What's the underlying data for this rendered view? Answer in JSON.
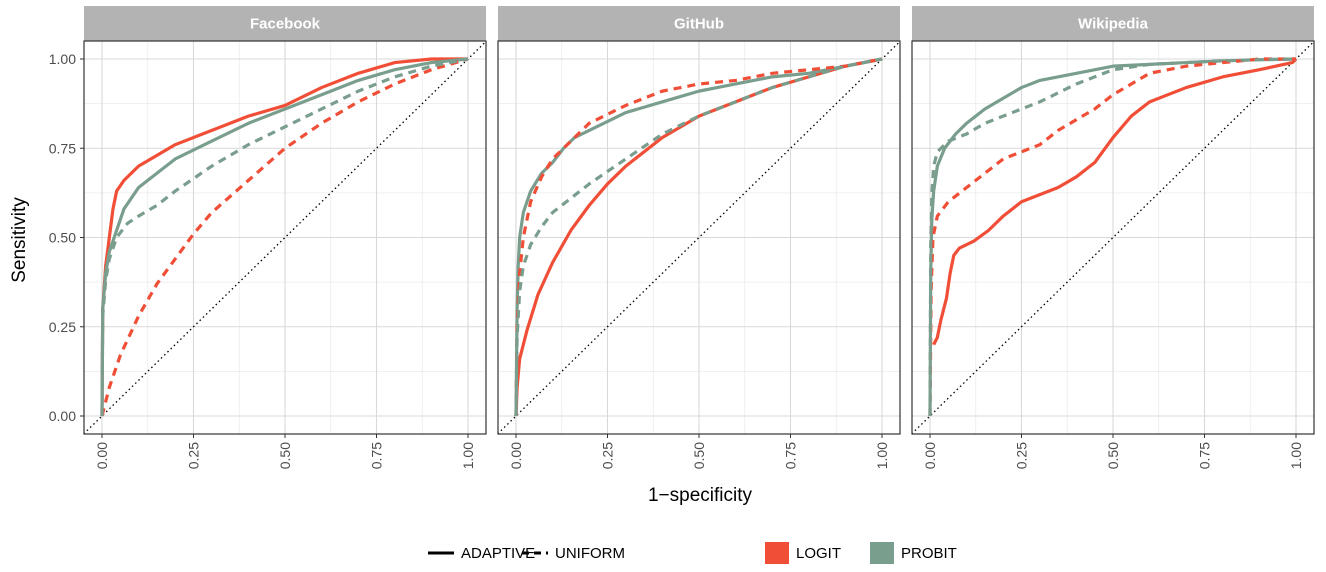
{
  "chart_data": {
    "type": "line",
    "facets": [
      "Facebook",
      "GitHub",
      "Wikipedia"
    ],
    "xlabel": "1−specificity",
    "ylabel": "Sensitivity",
    "xlim": [
      0,
      1
    ],
    "ylim": [
      0,
      1
    ],
    "x_ticks": [
      "0.00",
      "0.25",
      "0.50",
      "0.75",
      "1.00"
    ],
    "y_ticks": [
      "0.00",
      "0.25",
      "0.50",
      "0.75",
      "1.00"
    ],
    "grid": true,
    "legend_position": "bottom",
    "legend": {
      "linetype": [
        {
          "label": "ADAPTIVE",
          "dash": "solid"
        },
        {
          "label": "UNIFORM",
          "dash": "dashed"
        }
      ],
      "color": [
        {
          "label": "LOGIT",
          "color": "#F04E36"
        },
        {
          "label": "PROBIT",
          "color": "#7A9E8E"
        }
      ]
    },
    "diagonal_reference": true,
    "panels": [
      {
        "facet": "Facebook",
        "series": [
          {
            "method": "LOGIT",
            "linetype": "ADAPTIVE",
            "points": [
              [
                0,
                0
              ],
              [
                0.002,
                0.3
              ],
              [
                0.01,
                0.42
              ],
              [
                0.02,
                0.5
              ],
              [
                0.03,
                0.58
              ],
              [
                0.04,
                0.63
              ],
              [
                0.06,
                0.66
              ],
              [
                0.1,
                0.7
              ],
              [
                0.15,
                0.73
              ],
              [
                0.2,
                0.76
              ],
              [
                0.3,
                0.8
              ],
              [
                0.4,
                0.84
              ],
              [
                0.5,
                0.87
              ],
              [
                0.6,
                0.92
              ],
              [
                0.7,
                0.96
              ],
              [
                0.8,
                0.99
              ],
              [
                0.9,
                1.0
              ],
              [
                1,
                1
              ]
            ]
          },
          {
            "method": "PROBIT",
            "linetype": "ADAPTIVE",
            "points": [
              [
                0,
                0
              ],
              [
                0.002,
                0.3
              ],
              [
                0.01,
                0.4
              ],
              [
                0.02,
                0.46
              ],
              [
                0.04,
                0.52
              ],
              [
                0.06,
                0.58
              ],
              [
                0.1,
                0.64
              ],
              [
                0.15,
                0.68
              ],
              [
                0.2,
                0.72
              ],
              [
                0.3,
                0.77
              ],
              [
                0.4,
                0.82
              ],
              [
                0.5,
                0.86
              ],
              [
                0.6,
                0.9
              ],
              [
                0.7,
                0.94
              ],
              [
                0.8,
                0.97
              ],
              [
                0.9,
                0.99
              ],
              [
                1,
                1
              ]
            ]
          },
          {
            "method": "LOGIT",
            "linetype": "UNIFORM",
            "points": [
              [
                0,
                0
              ],
              [
                0.02,
                0.08
              ],
              [
                0.05,
                0.17
              ],
              [
                0.1,
                0.28
              ],
              [
                0.15,
                0.37
              ],
              [
                0.2,
                0.44
              ],
              [
                0.25,
                0.51
              ],
              [
                0.3,
                0.57
              ],
              [
                0.4,
                0.66
              ],
              [
                0.5,
                0.75
              ],
              [
                0.6,
                0.82
              ],
              [
                0.7,
                0.88
              ],
              [
                0.8,
                0.93
              ],
              [
                0.9,
                0.97
              ],
              [
                1,
                1
              ]
            ]
          },
          {
            "method": "PROBIT",
            "linetype": "UNIFORM",
            "points": [
              [
                0,
                0
              ],
              [
                0.002,
                0.28
              ],
              [
                0.01,
                0.38
              ],
              [
                0.02,
                0.44
              ],
              [
                0.04,
                0.5
              ],
              [
                0.07,
                0.54
              ],
              [
                0.1,
                0.56
              ],
              [
                0.15,
                0.59
              ],
              [
                0.2,
                0.63
              ],
              [
                0.3,
                0.7
              ],
              [
                0.4,
                0.76
              ],
              [
                0.5,
                0.81
              ],
              [
                0.6,
                0.86
              ],
              [
                0.7,
                0.91
              ],
              [
                0.8,
                0.95
              ],
              [
                0.9,
                0.98
              ],
              [
                1,
                1
              ]
            ]
          }
        ]
      },
      {
        "facet": "GitHub",
        "series": [
          {
            "method": "LOGIT",
            "linetype": "ADAPTIVE",
            "points": [
              [
                0,
                0
              ],
              [
                0.003,
                0.08
              ],
              [
                0.01,
                0.16
              ],
              [
                0.03,
                0.24
              ],
              [
                0.06,
                0.34
              ],
              [
                0.1,
                0.43
              ],
              [
                0.15,
                0.52
              ],
              [
                0.2,
                0.59
              ],
              [
                0.25,
                0.65
              ],
              [
                0.3,
                0.7
              ],
              [
                0.4,
                0.78
              ],
              [
                0.5,
                0.84
              ],
              [
                0.6,
                0.88
              ],
              [
                0.7,
                0.92
              ],
              [
                0.8,
                0.95
              ],
              [
                0.9,
                0.98
              ],
              [
                1,
                1
              ]
            ]
          },
          {
            "method": "PROBIT",
            "linetype": "ADAPTIVE",
            "points": [
              [
                0,
                0
              ],
              [
                0.003,
                0.3
              ],
              [
                0.006,
                0.42
              ],
              [
                0.01,
                0.5
              ],
              [
                0.02,
                0.57
              ],
              [
                0.04,
                0.63
              ],
              [
                0.07,
                0.68
              ],
              [
                0.1,
                0.71
              ],
              [
                0.13,
                0.75
              ],
              [
                0.16,
                0.78
              ],
              [
                0.2,
                0.8
              ],
              [
                0.3,
                0.85
              ],
              [
                0.4,
                0.88
              ],
              [
                0.5,
                0.91
              ],
              [
                0.6,
                0.93
              ],
              [
                0.7,
                0.95
              ],
              [
                0.8,
                0.96
              ],
              [
                0.9,
                0.98
              ],
              [
                1,
                1
              ]
            ]
          },
          {
            "method": "LOGIT",
            "linetype": "UNIFORM",
            "points": [
              [
                0,
                0
              ],
              [
                0.003,
                0.25
              ],
              [
                0.01,
                0.4
              ],
              [
                0.02,
                0.5
              ],
              [
                0.04,
                0.6
              ],
              [
                0.07,
                0.67
              ],
              [
                0.1,
                0.72
              ],
              [
                0.15,
                0.77
              ],
              [
                0.2,
                0.82
              ],
              [
                0.3,
                0.87
              ],
              [
                0.4,
                0.91
              ],
              [
                0.5,
                0.93
              ],
              [
                0.6,
                0.94
              ],
              [
                0.7,
                0.96
              ],
              [
                0.8,
                0.97
              ],
              [
                0.9,
                0.98
              ],
              [
                1,
                1
              ]
            ]
          },
          {
            "method": "PROBIT",
            "linetype": "UNIFORM",
            "points": [
              [
                0,
                0
              ],
              [
                0.003,
                0.22
              ],
              [
                0.01,
                0.35
              ],
              [
                0.02,
                0.42
              ],
              [
                0.04,
                0.48
              ],
              [
                0.07,
                0.53
              ],
              [
                0.1,
                0.57
              ],
              [
                0.15,
                0.61
              ],
              [
                0.2,
                0.65
              ],
              [
                0.3,
                0.72
              ],
              [
                0.4,
                0.79
              ],
              [
                0.5,
                0.84
              ],
              [
                0.6,
                0.88
              ],
              [
                0.7,
                0.92
              ],
              [
                0.8,
                0.95
              ],
              [
                0.9,
                0.98
              ],
              [
                1,
                1
              ]
            ]
          }
        ]
      },
      {
        "facet": "Wikipedia",
        "series": [
          {
            "method": "LOGIT",
            "linetype": "ADAPTIVE",
            "points": [
              [
                0.01,
                0.2
              ],
              [
                0.02,
                0.22
              ],
              [
                0.03,
                0.27
              ],
              [
                0.045,
                0.33
              ],
              [
                0.055,
                0.4
              ],
              [
                0.065,
                0.45
              ],
              [
                0.08,
                0.47
              ],
              [
                0.12,
                0.49
              ],
              [
                0.16,
                0.52
              ],
              [
                0.2,
                0.56
              ],
              [
                0.25,
                0.6
              ],
              [
                0.3,
                0.62
              ],
              [
                0.35,
                0.64
              ],
              [
                0.4,
                0.67
              ],
              [
                0.45,
                0.71
              ],
              [
                0.5,
                0.78
              ],
              [
                0.55,
                0.84
              ],
              [
                0.6,
                0.88
              ],
              [
                0.7,
                0.92
              ],
              [
                0.8,
                0.95
              ],
              [
                0.9,
                0.97
              ],
              [
                0.99,
                0.99
              ],
              [
                1,
                1
              ]
            ]
          },
          {
            "method": "PROBIT",
            "linetype": "ADAPTIVE",
            "points": [
              [
                0,
                0
              ],
              [
                0.002,
                0.4
              ],
              [
                0.005,
                0.55
              ],
              [
                0.01,
                0.63
              ],
              [
                0.02,
                0.7
              ],
              [
                0.04,
                0.75
              ],
              [
                0.07,
                0.79
              ],
              [
                0.1,
                0.82
              ],
              [
                0.15,
                0.86
              ],
              [
                0.2,
                0.89
              ],
              [
                0.25,
                0.92
              ],
              [
                0.3,
                0.94
              ],
              [
                0.4,
                0.96
              ],
              [
                0.5,
                0.98
              ],
              [
                0.6,
                0.985
              ],
              [
                0.7,
                0.99
              ],
              [
                0.8,
                0.995
              ],
              [
                0.9,
                0.998
              ],
              [
                1,
                1
              ]
            ]
          },
          {
            "method": "LOGIT",
            "linetype": "UNIFORM",
            "points": [
              [
                0,
                0.0
              ],
              [
                0.003,
                0.35
              ],
              [
                0.008,
                0.5
              ],
              [
                0.02,
                0.56
              ],
              [
                0.05,
                0.6
              ],
              [
                0.1,
                0.64
              ],
              [
                0.15,
                0.68
              ],
              [
                0.2,
                0.72
              ],
              [
                0.25,
                0.74
              ],
              [
                0.3,
                0.76
              ],
              [
                0.35,
                0.8
              ],
              [
                0.4,
                0.83
              ],
              [
                0.45,
                0.86
              ],
              [
                0.5,
                0.9
              ],
              [
                0.55,
                0.93
              ],
              [
                0.6,
                0.96
              ],
              [
                0.7,
                0.98
              ],
              [
                0.8,
                0.99
              ],
              [
                0.9,
                1.0
              ],
              [
                1,
                1
              ]
            ]
          },
          {
            "method": "PROBIT",
            "linetype": "UNIFORM",
            "points": [
              [
                0,
                0
              ],
              [
                0.002,
                0.48
              ],
              [
                0.005,
                0.62
              ],
              [
                0.01,
                0.7
              ],
              [
                0.02,
                0.74
              ],
              [
                0.05,
                0.77
              ],
              [
                0.1,
                0.79
              ],
              [
                0.15,
                0.82
              ],
              [
                0.2,
                0.84
              ],
              [
                0.3,
                0.88
              ],
              [
                0.4,
                0.93
              ],
              [
                0.5,
                0.97
              ],
              [
                0.6,
                0.985
              ],
              [
                0.7,
                0.99
              ],
              [
                0.8,
                0.995
              ],
              [
                0.9,
                0.998
              ],
              [
                1,
                1
              ]
            ]
          }
        ]
      }
    ]
  }
}
